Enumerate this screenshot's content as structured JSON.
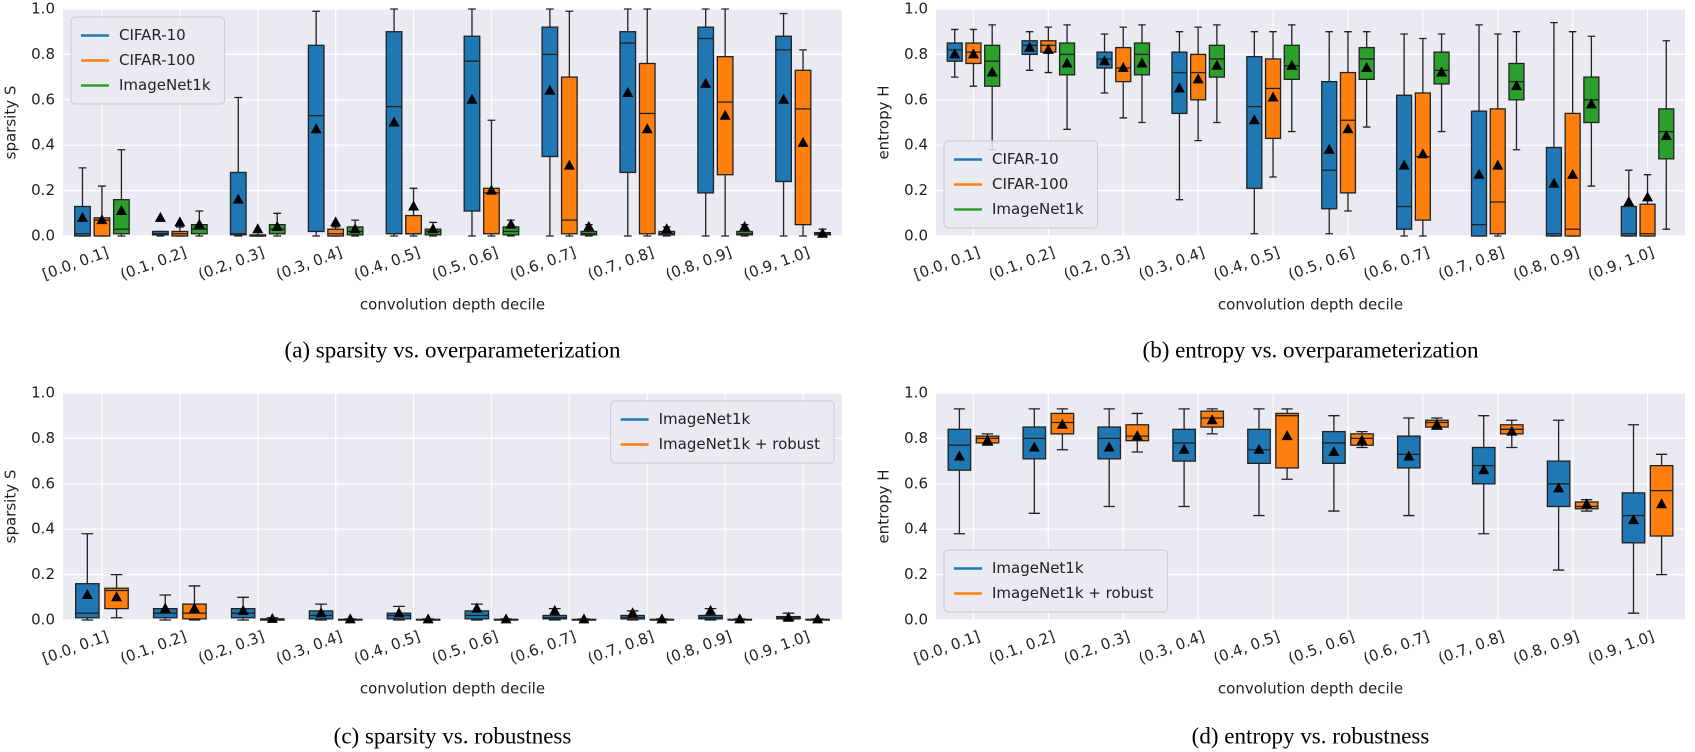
{
  "chart_data": [
    {
      "type": "box",
      "caption": "(a) sparsity vs. overparameterization",
      "xlabel": "convolution depth decile",
      "ylabel": "sparsity S",
      "categories": [
        "[0.0, 0.1]",
        "(0.1, 0.2]",
        "(0.2, 0.3]",
        "(0.3, 0.4]",
        "(0.4, 0.5]",
        "(0.5, 0.6]",
        "(0.6, 0.7]",
        "(0.7, 0.8]",
        "(0.8, 0.9]",
        "(0.9, 1.0]"
      ],
      "ylim": [
        0,
        1
      ],
      "yticks": [
        {
          "value": 0,
          "label": "0.0"
        },
        0.2,
        0.4,
        0.6,
        0.8,
        {
          "value": 1,
          "label": "1.0"
        }
      ],
      "grid": true,
      "legend": "upper left",
      "series": [
        {
          "name": "CIFAR-10",
          "color": "#1f77b4",
          "whislo": [
            0,
            0,
            0,
            0,
            0,
            0,
            0,
            0,
            0,
            0
          ],
          "q1": [
            0,
            0.005,
            0.005,
            0.02,
            0.01,
            0.11,
            0.35,
            0.28,
            0.19,
            0.24
          ],
          "med": [
            0.01,
            0.01,
            0.01,
            0.53,
            0.57,
            0.77,
            0.8,
            0.85,
            0.87,
            0.82
          ],
          "q3": [
            0.13,
            0.02,
            0.28,
            0.84,
            0.9,
            0.88,
            0.92,
            0.9,
            0.92,
            0.88
          ],
          "whishi": [
            0.3,
            0.02,
            0.61,
            0.99,
            1,
            1,
            1,
            1,
            1,
            0.98
          ],
          "mean": [
            0.08,
            0.08,
            0.16,
            0.47,
            0.5,
            0.6,
            0.64,
            0.63,
            0.67,
            0.6
          ]
        },
        {
          "name": "CIFAR-100",
          "color": "#ff7f0e",
          "whislo": [
            0,
            0,
            0,
            0,
            0,
            0,
            0,
            0,
            0,
            0
          ],
          "q1": [
            0,
            0,
            0,
            0,
            0.01,
            0.01,
            0.01,
            0.01,
            0.27,
            0.05
          ],
          "med": [
            0.07,
            0.01,
            0,
            0.01,
            0.01,
            0.19,
            0.07,
            0.54,
            0.59,
            0.56
          ],
          "q3": [
            0.08,
            0.02,
            0.005,
            0.03,
            0.09,
            0.21,
            0.7,
            0.76,
            0.79,
            0.73
          ],
          "whishi": [
            0.22,
            0.04,
            0.02,
            0.04,
            0.21,
            0.51,
            0.99,
            1,
            1,
            0.82
          ],
          "mean": [
            0.07,
            0.06,
            0.03,
            0.06,
            0.13,
            0.2,
            0.31,
            0.47,
            0.53,
            0.41
          ]
        },
        {
          "name": "ImageNet1k",
          "color": "#2ca02c",
          "whislo": [
            0,
            0,
            0,
            0,
            0,
            0,
            0,
            0,
            0,
            0
          ],
          "q1": [
            0.01,
            0.01,
            0.01,
            0.005,
            0.005,
            0.005,
            0.005,
            0.005,
            0.005,
            0.005
          ],
          "med": [
            0.03,
            0.03,
            0.03,
            0.02,
            0.02,
            0.02,
            0.01,
            0.01,
            0.01,
            0.01
          ],
          "q3": [
            0.16,
            0.05,
            0.05,
            0.04,
            0.03,
            0.04,
            0.02,
            0.02,
            0.02,
            0.015
          ],
          "whishi": [
            0.38,
            0.11,
            0.1,
            0.07,
            0.06,
            0.07,
            0.05,
            0.04,
            0.05,
            0.03
          ],
          "mean": [
            0.11,
            0.05,
            0.04,
            0.03,
            0.03,
            0.05,
            0.04,
            0.03,
            0.04,
            0.01
          ]
        }
      ]
    },
    {
      "type": "box",
      "caption": "(b) entropy vs. overparameterization",
      "xlabel": "convolution depth decile",
      "ylabel": "entropy H",
      "categories": [
        "[0.0, 0.1]",
        "(0.1, 0.2]",
        "(0.2, 0.3]",
        "(0.3, 0.4]",
        "(0.4, 0.5]",
        "(0.5, 0.6]",
        "(0.6, 0.7]",
        "(0.7, 0.8]",
        "(0.8, 0.9]",
        "(0.9, 1.0]"
      ],
      "ylim": [
        0,
        1
      ],
      "yticks": [
        {
          "value": 0,
          "label": "0.0"
        },
        0.2,
        0.4,
        0.6,
        0.8,
        {
          "value": 1,
          "label": "1.0"
        }
      ],
      "grid": true,
      "legend": "lower left",
      "series": [
        {
          "name": "CIFAR-10",
          "color": "#1f77b4",
          "whislo": [
            0.7,
            0.73,
            0.63,
            0.16,
            0.01,
            0.01,
            0,
            0,
            0,
            0
          ],
          "q1": [
            0.77,
            0.8,
            0.74,
            0.54,
            0.21,
            0.12,
            0.03,
            0,
            0,
            0
          ],
          "med": [
            0.82,
            0.84,
            0.78,
            0.72,
            0.57,
            0.29,
            0.13,
            0.05,
            0.01,
            0.01
          ],
          "q3": [
            0.85,
            0.86,
            0.81,
            0.81,
            0.79,
            0.68,
            0.62,
            0.55,
            0.39,
            0.13
          ],
          "whishi": [
            0.91,
            0.9,
            0.89,
            0.9,
            0.9,
            0.9,
            0.89,
            0.93,
            0.94,
            0.29
          ],
          "mean": [
            0.8,
            0.83,
            0.77,
            0.65,
            0.51,
            0.38,
            0.31,
            0.27,
            0.23,
            0.15
          ]
        },
        {
          "name": "CIFAR-100",
          "color": "#ff7f0e",
          "whislo": [
            0.66,
            0.72,
            0.52,
            0.42,
            0.26,
            0.11,
            0,
            0,
            0,
            0
          ],
          "q1": [
            0.76,
            0.81,
            0.68,
            0.6,
            0.43,
            0.19,
            0.07,
            0.01,
            0,
            0
          ],
          "med": [
            0.81,
            0.84,
            0.74,
            0.72,
            0.65,
            0.51,
            0.35,
            0.15,
            0.03,
            0.01
          ],
          "q3": [
            0.85,
            0.86,
            0.83,
            0.8,
            0.78,
            0.72,
            0.63,
            0.56,
            0.54,
            0.14
          ],
          "whishi": [
            0.91,
            0.92,
            0.92,
            0.92,
            0.9,
            0.9,
            0.87,
            0.89,
            0.9,
            0.27
          ],
          "mean": [
            0.8,
            0.82,
            0.74,
            0.69,
            0.61,
            0.47,
            0.36,
            0.31,
            0.27,
            0.17
          ]
        },
        {
          "name": "ImageNet1k",
          "color": "#2ca02c",
          "whislo": [
            0.38,
            0.47,
            0.5,
            0.5,
            0.46,
            0.48,
            0.46,
            0.38,
            0.22,
            0.03
          ],
          "q1": [
            0.66,
            0.71,
            0.71,
            0.7,
            0.69,
            0.69,
            0.67,
            0.6,
            0.5,
            0.34
          ],
          "med": [
            0.77,
            0.8,
            0.8,
            0.78,
            0.75,
            0.78,
            0.73,
            0.68,
            0.6,
            0.46
          ],
          "q3": [
            0.84,
            0.85,
            0.85,
            0.84,
            0.84,
            0.83,
            0.81,
            0.76,
            0.7,
            0.56
          ],
          "whishi": [
            0.93,
            0.93,
            0.93,
            0.93,
            0.93,
            0.9,
            0.89,
            0.9,
            0.88,
            0.86
          ],
          "mean": [
            0.72,
            0.76,
            0.76,
            0.75,
            0.75,
            0.74,
            0.72,
            0.66,
            0.58,
            0.44
          ]
        }
      ]
    },
    {
      "type": "box",
      "caption": "(c) sparsity vs. robustness",
      "xlabel": "convolution depth decile",
      "ylabel": "sparsity S",
      "categories": [
        "[0.0, 0.1]",
        "(0.1, 0.2]",
        "(0.2, 0.3]",
        "(0.3, 0.4]",
        "(0.4, 0.5]",
        "(0.5, 0.6]",
        "(0.6, 0.7]",
        "(0.7, 0.8]",
        "(0.8, 0.9]",
        "(0.9, 1.0]"
      ],
      "ylim": [
        0,
        1
      ],
      "yticks": [
        {
          "value": 0,
          "label": "0.0"
        },
        0.2,
        0.4,
        0.6,
        0.8,
        {
          "value": 1,
          "label": "1.0"
        }
      ],
      "grid": true,
      "legend": "upper right",
      "series": [
        {
          "name": "ImageNet1k",
          "color": "#1f77b4",
          "whislo": [
            0,
            0,
            0,
            0,
            0,
            0,
            0,
            0,
            0,
            0
          ],
          "q1": [
            0.01,
            0.01,
            0.01,
            0.005,
            0.005,
            0.005,
            0.005,
            0.005,
            0.005,
            0.005
          ],
          "med": [
            0.03,
            0.03,
            0.03,
            0.02,
            0.02,
            0.02,
            0.01,
            0.01,
            0.01,
            0.01
          ],
          "q3": [
            0.16,
            0.05,
            0.05,
            0.04,
            0.03,
            0.04,
            0.02,
            0.02,
            0.02,
            0.015
          ],
          "whishi": [
            0.38,
            0.11,
            0.1,
            0.07,
            0.06,
            0.07,
            0.05,
            0.04,
            0.05,
            0.03
          ],
          "mean": [
            0.11,
            0.05,
            0.04,
            0.03,
            0.03,
            0.05,
            0.04,
            0.03,
            0.04,
            0.01
          ]
        },
        {
          "name": "ImageNet1k + robust",
          "color": "#ff7f0e",
          "whislo": [
            0.01,
            0,
            0,
            0,
            0,
            0,
            0,
            0,
            0,
            0
          ],
          "q1": [
            0.05,
            0.005,
            0,
            0,
            0,
            0,
            0,
            0,
            0,
            0
          ],
          "med": [
            0.13,
            0.03,
            0,
            0,
            0,
            0,
            0,
            0,
            0,
            0
          ],
          "q3": [
            0.14,
            0.07,
            0.005,
            0.003,
            0.003,
            0.003,
            0.003,
            0.003,
            0.003,
            0.003
          ],
          "whishi": [
            0.2,
            0.15,
            0.01,
            0.005,
            0.005,
            0.005,
            0.005,
            0.005,
            0.005,
            0.005
          ],
          "mean": [
            0.1,
            0.05,
            0.005,
            0.003,
            0.003,
            0.003,
            0.003,
            0.003,
            0.003,
            0.003
          ]
        }
      ]
    },
    {
      "type": "box",
      "caption": "(d) entropy vs. robustness",
      "xlabel": "convolution depth decile",
      "ylabel": "entropy H",
      "categories": [
        "[0.0, 0.1]",
        "(0.1, 0.2]",
        "(0.2, 0.3]",
        "(0.3, 0.4]",
        "(0.4, 0.5]",
        "(0.5, 0.6]",
        "(0.6, 0.7]",
        "(0.7, 0.8]",
        "(0.8, 0.9]",
        "(0.9, 1.0]"
      ],
      "ylim": [
        0,
        1
      ],
      "yticks": [
        {
          "value": 0,
          "label": "0.0"
        },
        0.2,
        0.4,
        0.6,
        0.8,
        {
          "value": 1,
          "label": "1.0"
        }
      ],
      "grid": true,
      "legend": "lower left",
      "series": [
        {
          "name": "ImageNet1k",
          "color": "#1f77b4",
          "whislo": [
            0.38,
            0.47,
            0.5,
            0.5,
            0.46,
            0.48,
            0.46,
            0.38,
            0.22,
            0.03
          ],
          "q1": [
            0.66,
            0.71,
            0.71,
            0.7,
            0.69,
            0.69,
            0.67,
            0.6,
            0.5,
            0.34
          ],
          "med": [
            0.77,
            0.8,
            0.8,
            0.78,
            0.75,
            0.78,
            0.73,
            0.68,
            0.6,
            0.46
          ],
          "q3": [
            0.84,
            0.85,
            0.85,
            0.84,
            0.84,
            0.83,
            0.81,
            0.76,
            0.7,
            0.56
          ],
          "whishi": [
            0.93,
            0.93,
            0.93,
            0.93,
            0.93,
            0.9,
            0.89,
            0.9,
            0.88,
            0.86
          ],
          "mean": [
            0.72,
            0.76,
            0.76,
            0.75,
            0.75,
            0.74,
            0.72,
            0.66,
            0.58,
            0.44
          ]
        },
        {
          "name": "ImageNet1k + robust",
          "color": "#ff7f0e",
          "whislo": [
            0.77,
            0.75,
            0.74,
            0.82,
            0.62,
            0.76,
            0.84,
            0.76,
            0.48,
            0.2
          ],
          "q1": [
            0.78,
            0.82,
            0.79,
            0.85,
            0.67,
            0.77,
            0.85,
            0.82,
            0.49,
            0.37
          ],
          "med": [
            0.8,
            0.87,
            0.81,
            0.89,
            0.9,
            0.8,
            0.87,
            0.84,
            0.5,
            0.57
          ],
          "q3": [
            0.81,
            0.91,
            0.86,
            0.92,
            0.91,
            0.82,
            0.88,
            0.86,
            0.52,
            0.68
          ],
          "whishi": [
            0.82,
            0.93,
            0.91,
            0.93,
            0.93,
            0.83,
            0.89,
            0.88,
            0.53,
            0.73
          ],
          "mean": [
            0.79,
            0.86,
            0.81,
            0.88,
            0.81,
            0.79,
            0.86,
            0.83,
            0.51,
            0.51
          ]
        }
      ]
    }
  ]
}
